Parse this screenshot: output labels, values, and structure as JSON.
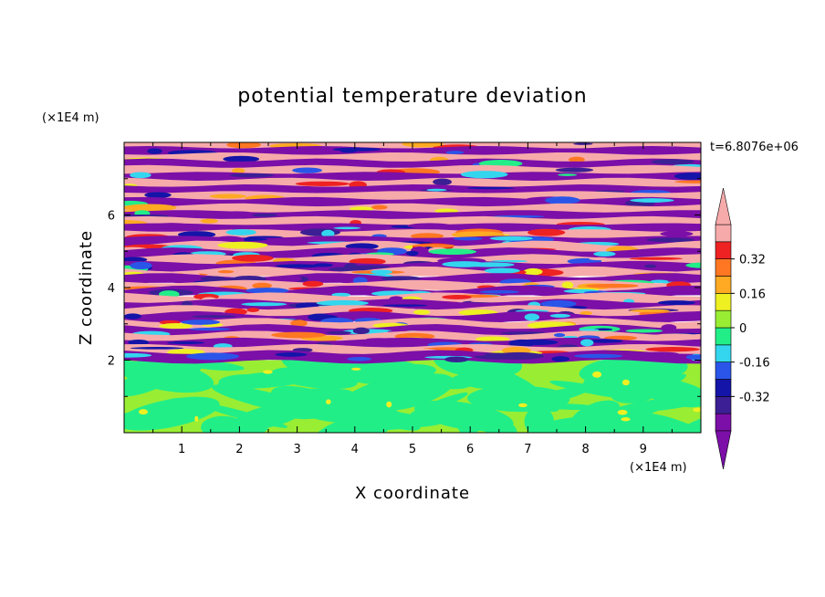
{
  "chart_data": {
    "type": "heatmap",
    "title": "potential temperature deviation",
    "xlabel": "X coordinate",
    "ylabel": "Z coordinate",
    "x_unit": "(×1E4 m)",
    "y_unit": "(×1E4 m)",
    "time_label": "t=6.8076e+06",
    "xlim": [
      0,
      10
    ],
    "ylim": [
      0,
      8
    ],
    "x_ticks": [
      "1",
      "2",
      "3",
      "4",
      "5",
      "6",
      "7",
      "8",
      "9"
    ],
    "y_ticks": [
      "2",
      "4",
      "6"
    ],
    "colorbar": {
      "levels": [
        -0.48,
        -0.4,
        -0.32,
        -0.24,
        -0.16,
        -0.08,
        0,
        0.08,
        0.16,
        0.24,
        0.32,
        0.4,
        0.48
      ],
      "colors": [
        "#7b0fa8",
        "#3c1f94",
        "#1414a8",
        "#2a55e8",
        "#33d6ee",
        "#22ee88",
        "#99ee33",
        "#eef022",
        "#ffaa22",
        "#ff7722",
        "#ee2222",
        "#f7aaaa"
      ],
      "labels": [
        "0.32",
        "0.16",
        "0",
        "-0.16",
        "-0.32"
      ],
      "label_values": [
        0.32,
        0.16,
        0,
        -0.16,
        -0.32
      ],
      "extend": "both"
    },
    "field_description": {
      "lower_layer": {
        "z_range": [
          0,
          2
        ],
        "value_range": [
          -0.08,
          0.08
        ]
      },
      "upper_layer": {
        "z_range": [
          2,
          8
        ],
        "value_range": [
          -0.48,
          0.48
        ],
        "pattern": "horizontal layered bands"
      }
    }
  }
}
